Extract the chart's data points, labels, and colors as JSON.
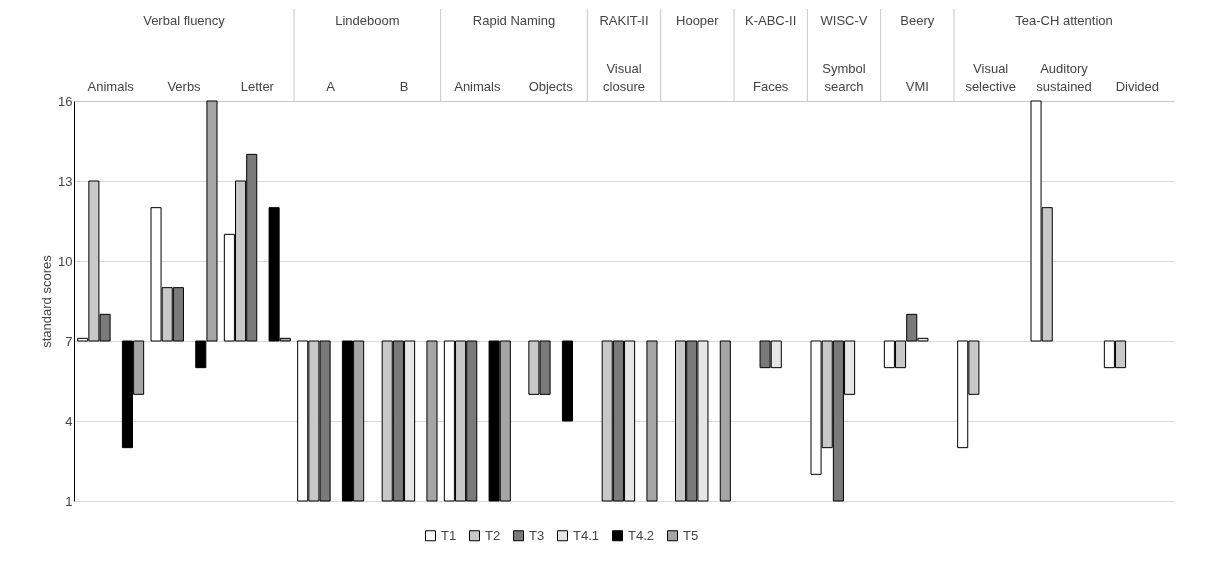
{
  "chart_data": {
    "type": "bar",
    "ylabel": "standard scores",
    "categories": [
      "Animals",
      "Verbs",
      "Letter",
      "A",
      "B",
      "Animals",
      "Objects",
      "Visual closure",
      null,
      "Faces",
      "Symbol search",
      "VMI",
      "Visual selective",
      "Auditory sustained",
      "Divided"
    ],
    "series": [
      {
        "name": "T1",
        "color": "#ffffff",
        "base": [
          7,
          7,
          7,
          7,
          null,
          7,
          null,
          null,
          null,
          null,
          7,
          7,
          7,
          7,
          7
        ],
        "values": [
          0.1,
          5,
          4,
          -6,
          null,
          -6,
          null,
          null,
          null,
          null,
          -5,
          -1,
          -4,
          9,
          -1
        ]
      },
      {
        "name": "T2",
        "color": "#c8c8c8",
        "base": [
          7,
          7,
          7,
          7,
          7,
          7,
          7,
          7,
          7,
          null,
          7,
          7,
          7,
          7,
          7
        ],
        "values": [
          6,
          2,
          6,
          -6,
          -6,
          -6,
          -2,
          -6,
          -6,
          null,
          -4,
          -1,
          -2,
          5,
          -1
        ]
      },
      {
        "name": "T3",
        "color": "#7a7a7a",
        "base": [
          7,
          7,
          7,
          7,
          7,
          7,
          7,
          7,
          7,
          7,
          7,
          7,
          null,
          null,
          null
        ],
        "values": [
          1,
          2,
          7,
          -6,
          -6,
          -6,
          -2,
          -6,
          -6,
          -1,
          -6,
          1,
          null,
          null,
          null
        ]
      },
      {
        "name": "T4.1",
        "color": "#e6e6e6",
        "base": [
          null,
          null,
          null,
          null,
          7,
          null,
          null,
          7,
          7,
          7,
          7,
          7,
          null,
          null,
          null
        ],
        "values": [
          null,
          null,
          null,
          null,
          -6,
          null,
          null,
          -6,
          -6,
          -1,
          -2,
          0.1,
          null,
          null,
          null
        ]
      },
      {
        "name": "T4.2",
        "color": "#000000",
        "base": [
          7,
          7,
          7,
          7,
          null,
          7,
          7,
          null,
          null,
          null,
          null,
          null,
          null,
          null,
          null
        ],
        "values": [
          -4,
          -1,
          5,
          -6,
          null,
          -6,
          -3,
          null,
          null,
          null,
          null,
          null,
          null,
          null,
          null
        ]
      },
      {
        "name": "T5",
        "color": "#a5a5a5",
        "base": [
          7,
          7,
          7,
          7,
          7,
          7,
          null,
          7,
          7,
          null,
          null,
          null,
          null,
          null,
          null
        ],
        "values": [
          -2,
          9,
          0.1,
          -6,
          -6,
          -6,
          null,
          -6,
          -6,
          null,
          null,
          null,
          null,
          null,
          null
        ]
      }
    ],
    "annotations": [
      "Verbal fluency",
      "Lindeboom",
      "Rapid Naming",
      "RAKIT-II",
      "Hooper",
      "K-ABC-II",
      "WISC-V",
      "Beery",
      "Tea-CH attention"
    ],
    "ylim": [
      1,
      16
    ],
    "yticks": [
      1,
      4,
      7,
      10,
      13,
      16
    ],
    "grid": "y",
    "legend": "bottom"
  }
}
